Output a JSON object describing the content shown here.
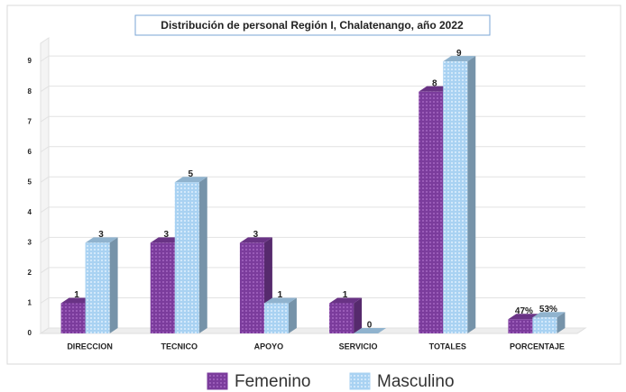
{
  "chart_data": {
    "type": "bar3d",
    "title": "Distribución de personal Región I,  Chalatenango, año 2022",
    "categories": [
      "DIRECCION",
      "TECNICO",
      "APOYO",
      "SERVICIO",
      "TOTALES",
      "PORCENTAJE"
    ],
    "series": [
      {
        "name": "Femenino",
        "color": "#7b3c9c",
        "values": [
          1,
          3,
          3,
          1,
          8,
          0.47
        ],
        "value_labels": [
          "1",
          "3",
          "3",
          "1",
          "8",
          "47%"
        ]
      },
      {
        "name": "Masculino",
        "color": "#a9d2f2",
        "values": [
          3,
          5,
          1,
          0,
          9,
          0.53
        ],
        "value_labels": [
          "3",
          "5",
          "1",
          "0",
          "9",
          "53%"
        ]
      }
    ],
    "ylim": [
      0,
      9.6
    ],
    "yticks": [
      0,
      1,
      2,
      3,
      4,
      5,
      6,
      7,
      8,
      9
    ],
    "grid": true,
    "legend": "bottom"
  }
}
